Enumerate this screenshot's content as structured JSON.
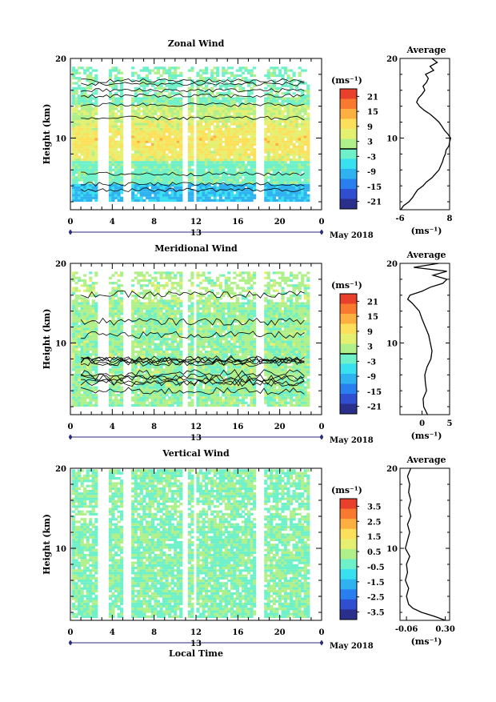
{
  "chart_data": [
    {
      "type": "heatmap",
      "title": "Zonal Wind",
      "ylabel": "Height (km)",
      "xlabel": "",
      "x_ticks": [
        "0",
        "4",
        "8",
        "12",
        "16",
        "20",
        "0"
      ],
      "y_ticks": [
        "20",
        "10"
      ],
      "xlim": [
        0,
        24
      ],
      "ylim": [
        1,
        20
      ],
      "date_label": "13",
      "month_label": "May 2018",
      "colorbar": {
        "unit": "(ms⁻¹)",
        "ticks": [
          "21",
          "15",
          "9",
          "3",
          "-3",
          "-9",
          "-15",
          "-21"
        ],
        "zero_line": true
      },
      "average": {
        "title": "Average",
        "xlabel": "(ms⁻¹)",
        "x_ticks": [
          "-6",
          "8"
        ],
        "xlim": [
          -6,
          8
        ],
        "y_ticks": [
          "20",
          "10"
        ],
        "profile": [
          [
            -5.8,
            1.0
          ],
          [
            -5,
            1.5
          ],
          [
            -3.5,
            2
          ],
          [
            -2.5,
            2.5
          ],
          [
            -1.8,
            3
          ],
          [
            -1,
            3.5
          ],
          [
            0.5,
            4
          ],
          [
            1.5,
            4.5
          ],
          [
            3,
            5
          ],
          [
            4,
            5.5
          ],
          [
            5,
            6
          ],
          [
            5.5,
            6.5
          ],
          [
            6,
            7
          ],
          [
            6.3,
            7.5
          ],
          [
            6.8,
            8
          ],
          [
            7,
            8.5
          ],
          [
            7.8,
            9
          ],
          [
            8,
            9.5
          ],
          [
            8.3,
            10
          ],
          [
            7.5,
            10.5
          ],
          [
            6.5,
            11
          ],
          [
            5.8,
            11.5
          ],
          [
            5,
            12
          ],
          [
            3.8,
            12.5
          ],
          [
            2.5,
            13
          ],
          [
            0.8,
            13.5
          ],
          [
            -0.5,
            14
          ],
          [
            -1.3,
            14.5
          ],
          [
            -0.8,
            15
          ],
          [
            0.2,
            15.5
          ],
          [
            1,
            16
          ],
          [
            0.5,
            16.5
          ],
          [
            1.5,
            17
          ],
          [
            2,
            17.5
          ],
          [
            1.2,
            18
          ],
          [
            3.5,
            18.5
          ],
          [
            2.5,
            19
          ],
          [
            4.5,
            19.5
          ],
          [
            3,
            20
          ]
        ]
      }
    },
    {
      "type": "heatmap",
      "title": "Meridional Wind",
      "ylabel": "Height (km)",
      "xlabel": "",
      "x_ticks": [
        "0",
        "4",
        "8",
        "12",
        "16",
        "20",
        "0"
      ],
      "y_ticks": [
        "20",
        "10"
      ],
      "xlim": [
        0,
        24
      ],
      "ylim": [
        1,
        20
      ],
      "date_label": "13",
      "month_label": "May 2018",
      "colorbar": {
        "unit": "(ms⁻¹)",
        "ticks": [
          "21",
          "15",
          "9",
          "3",
          "-3",
          "-9",
          "-15",
          "-21"
        ],
        "zero_line": true
      },
      "average": {
        "title": "Average",
        "xlabel": "(ms⁻¹)",
        "x_ticks": [
          "0",
          "5"
        ],
        "xlim": [
          -4,
          5
        ],
        "y_ticks": [
          "20",
          "10"
        ],
        "profile": [
          [
            1,
            1.0
          ],
          [
            0.3,
            2
          ],
          [
            0.2,
            3
          ],
          [
            0.8,
            4
          ],
          [
            0.6,
            5
          ],
          [
            0.5,
            6
          ],
          [
            0.9,
            7
          ],
          [
            1.6,
            8
          ],
          [
            1.8,
            9
          ],
          [
            1.5,
            10
          ],
          [
            1.2,
            11
          ],
          [
            0.6,
            12
          ],
          [
            0,
            13
          ],
          [
            -0.5,
            14
          ],
          [
            -1.8,
            15
          ],
          [
            -2.6,
            15.5
          ],
          [
            -2.2,
            16
          ],
          [
            0,
            16.5
          ],
          [
            1.5,
            17
          ],
          [
            3.8,
            17.5
          ],
          [
            4.5,
            18
          ],
          [
            2,
            18.5
          ],
          [
            4.5,
            19
          ],
          [
            -1.5,
            19.5
          ],
          [
            3,
            20
          ]
        ]
      }
    },
    {
      "type": "heatmap",
      "title": "Vertical Wind",
      "ylabel": "Height (km)",
      "xlabel": "Local Time",
      "x_ticks": [
        "0",
        "4",
        "8",
        "12",
        "16",
        "20",
        "0"
      ],
      "y_ticks": [
        "20",
        "10"
      ],
      "xlim": [
        0,
        24
      ],
      "ylim": [
        1,
        20
      ],
      "date_label": "13",
      "month_label": "May 2018",
      "colorbar": {
        "unit": "(ms⁻¹)",
        "ticks": [
          "3.5",
          "2.5",
          "1.5",
          "0.5",
          "-0.5",
          "-1.5",
          "-2.5",
          "-3.5"
        ],
        "zero_line": false
      },
      "average": {
        "title": "Average",
        "xlabel": "(ms⁻¹)",
        "x_ticks": [
          "-0.06",
          "0.30"
        ],
        "xlim": [
          -0.12,
          0.34
        ],
        "y_ticks": [
          "20",
          "10"
        ],
        "profile": [
          [
            0.3,
            1.0
          ],
          [
            0.2,
            1.5
          ],
          [
            0.08,
            2
          ],
          [
            0.0,
            2.5
          ],
          [
            -0.04,
            3
          ],
          [
            -0.06,
            4
          ],
          [
            -0.04,
            5
          ],
          [
            -0.07,
            6
          ],
          [
            -0.05,
            7
          ],
          [
            -0.06,
            8
          ],
          [
            -0.03,
            9
          ],
          [
            -0.07,
            10
          ],
          [
            -0.05,
            11
          ],
          [
            -0.03,
            12
          ],
          [
            -0.05,
            13
          ],
          [
            -0.02,
            14
          ],
          [
            -0.04,
            15
          ],
          [
            -0.02,
            16
          ],
          [
            -0.04,
            17
          ],
          [
            -0.03,
            18
          ],
          [
            -0.05,
            19
          ],
          [
            -0.02,
            20
          ]
        ]
      }
    }
  ]
}
